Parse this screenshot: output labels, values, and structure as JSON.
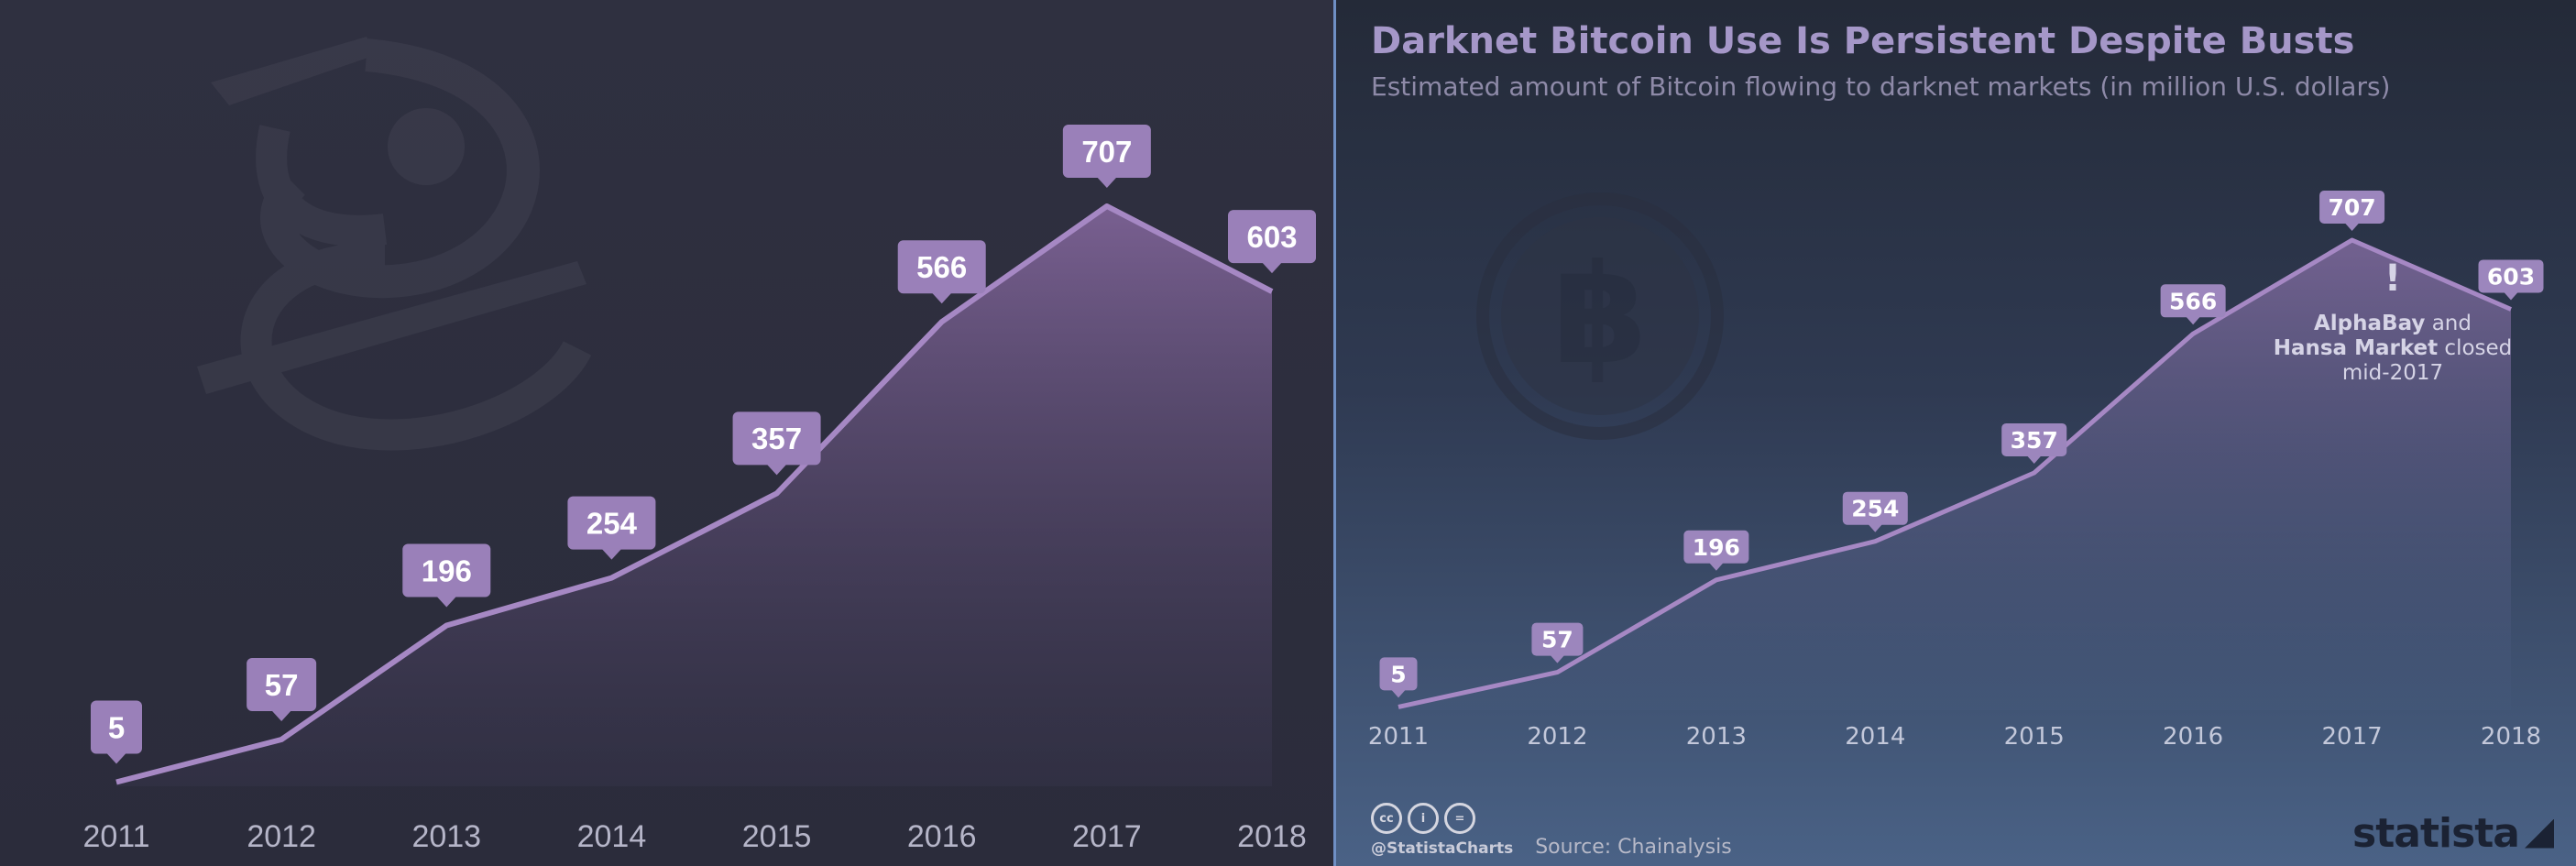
{
  "colors": {
    "line": "#a688c4",
    "bubble_left": "#9a80b9",
    "bubble_right": "#9c86bd",
    "bubble_text": "#ffffff",
    "left_axis_text": "#b5b5c8",
    "right_axis_text": "#c3c8da"
  },
  "left_panel": {
    "title": "",
    "watermark": "ghost-coin-icon"
  },
  "right_panel": {
    "title": "Darknet Bitcoin Use Is Persistent Despite Busts",
    "subtitle": "Estimated amount of Bitcoin flowing to darknet markets (in million U.S. dollars)",
    "watermark": "bitcoin-icon",
    "annotation": {
      "mark": "!",
      "line1_bold": "AlphaBay",
      "line1_rest": " and",
      "line2_bold": "Hansa Market",
      "line2_rest": " closed",
      "line3": "mid-2017"
    },
    "footer": {
      "icons": [
        "cc-icon",
        "by-icon",
        "nd-icon"
      ],
      "icon_glyphs": [
        "cc",
        "i",
        "="
      ],
      "handle": "@StatistaCharts",
      "source": "Source: Chainalysis"
    },
    "brand": "statista"
  },
  "chart_data": [
    {
      "type": "area",
      "title": "",
      "categories": [
        "2011",
        "2012",
        "2013",
        "2014",
        "2015",
        "2016",
        "2017",
        "2018"
      ],
      "values": [
        5,
        57,
        196,
        254,
        357,
        566,
        707,
        603
      ],
      "data_labels": [
        "5",
        "57",
        "196",
        "254",
        "357",
        "566",
        "707",
        "603"
      ],
      "xlabel": "",
      "ylabel": "",
      "grid": false
    },
    {
      "type": "area",
      "title": "Darknet Bitcoin Use Is Persistent Despite Busts",
      "subtitle": "Estimated amount of Bitcoin flowing to darknet markets (in million U.S. dollars)",
      "categories": [
        "2011",
        "2012",
        "2013",
        "2014",
        "2015",
        "2016",
        "2017",
        "2018"
      ],
      "values": [
        5,
        57,
        196,
        254,
        357,
        566,
        707,
        603
      ],
      "data_labels": [
        "5",
        "57",
        "196",
        "254",
        "357",
        "566",
        "707",
        "603"
      ],
      "xlabel": "",
      "ylabel": "",
      "grid": false,
      "annotation": "AlphaBay and Hansa Market closed mid-2017"
    }
  ]
}
